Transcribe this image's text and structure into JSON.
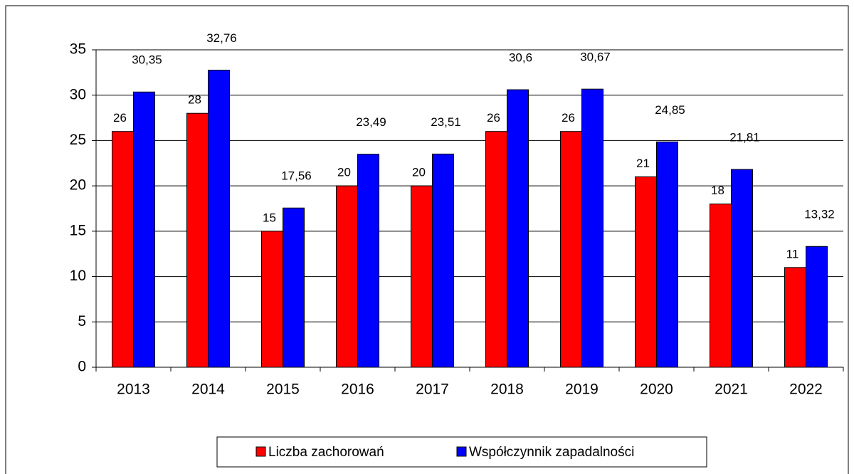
{
  "chart_data": {
    "type": "bar",
    "categories": [
      "2013",
      "2014",
      "2015",
      "2016",
      "2017",
      "2018",
      "2019",
      "2020",
      "2021",
      "2022"
    ],
    "series": [
      {
        "name": "Liczba zachorowań",
        "color": "#ff0000",
        "values": [
          26,
          28,
          15,
          20,
          20,
          26,
          26,
          21,
          18,
          11
        ]
      },
      {
        "name": "Współczynnik zapadalności",
        "color": "#0000ff",
        "values": [
          30.35,
          32.76,
          17.56,
          23.49,
          23.51,
          30.6,
          30.67,
          24.85,
          21.81,
          13.32
        ],
        "value_labels": [
          "30,35",
          "32,76",
          "17,56",
          "23,49",
          "23,51",
          "30,6",
          "30,67",
          "24,85",
          "21,81",
          "13,32"
        ]
      }
    ],
    "ylim": [
      0,
      35
    ],
    "yticks": [
      0,
      5,
      10,
      15,
      20,
      25,
      30,
      35
    ],
    "grid": true,
    "legend": "bottom"
  }
}
